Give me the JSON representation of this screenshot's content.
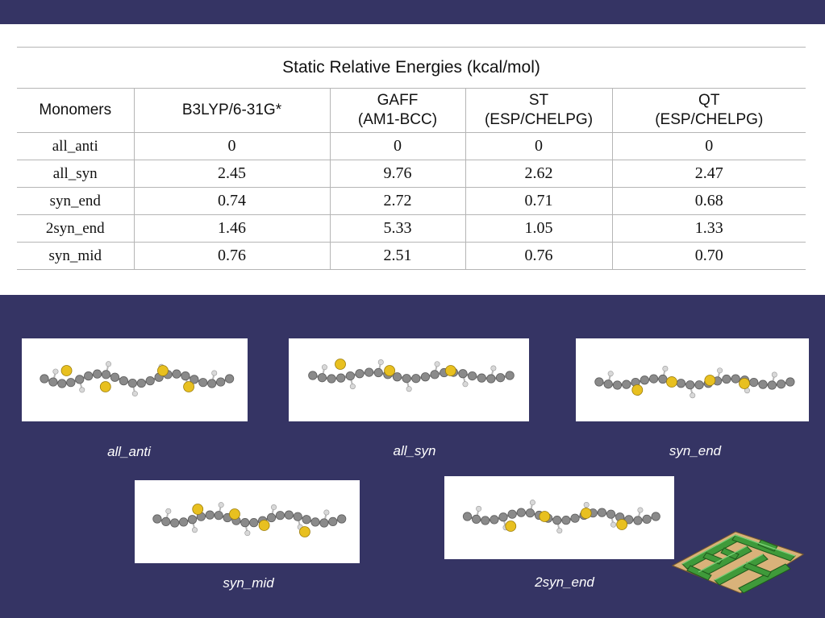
{
  "table": {
    "title": "Static Relative Energies (kcal/mol)",
    "headers": [
      {
        "line1": "Monomers",
        "line2": ""
      },
      {
        "line1": "B3LYP/6-31G*",
        "line2": ""
      },
      {
        "line1": "GAFF",
        "line2": "(AM1-BCC)"
      },
      {
        "line1": "ST",
        "line2": "(ESP/CHELPG)"
      },
      {
        "line1": "QT",
        "line2": "(ESP/CHELPG)"
      }
    ],
    "rows": [
      [
        "all_anti",
        "0",
        "0",
        "0",
        "0"
      ],
      [
        "all_syn",
        "2.45",
        "9.76",
        "2.62",
        "2.47"
      ],
      [
        "syn_end",
        "0.74",
        "2.72",
        "0.71",
        "0.68"
      ],
      [
        "2syn_end",
        "1.46",
        "5.33",
        "1.05",
        "1.33"
      ],
      [
        "syn_mid",
        "0.76",
        "2.51",
        "0.76",
        "0.70"
      ]
    ]
  },
  "molecules": [
    {
      "caption": "all_anti"
    },
    {
      "caption": "all_syn"
    },
    {
      "caption": "syn_end"
    },
    {
      "caption": "syn_mid"
    },
    {
      "caption": "2syn_end"
    }
  ],
  "colors": {
    "background": "#353464",
    "sulfur": "#e8c020",
    "carbon": "#8a8a8a",
    "hydrogen": "#d8d8d8",
    "maze_green": "#3f9a3a",
    "maze_floor": "#d9b27a"
  }
}
